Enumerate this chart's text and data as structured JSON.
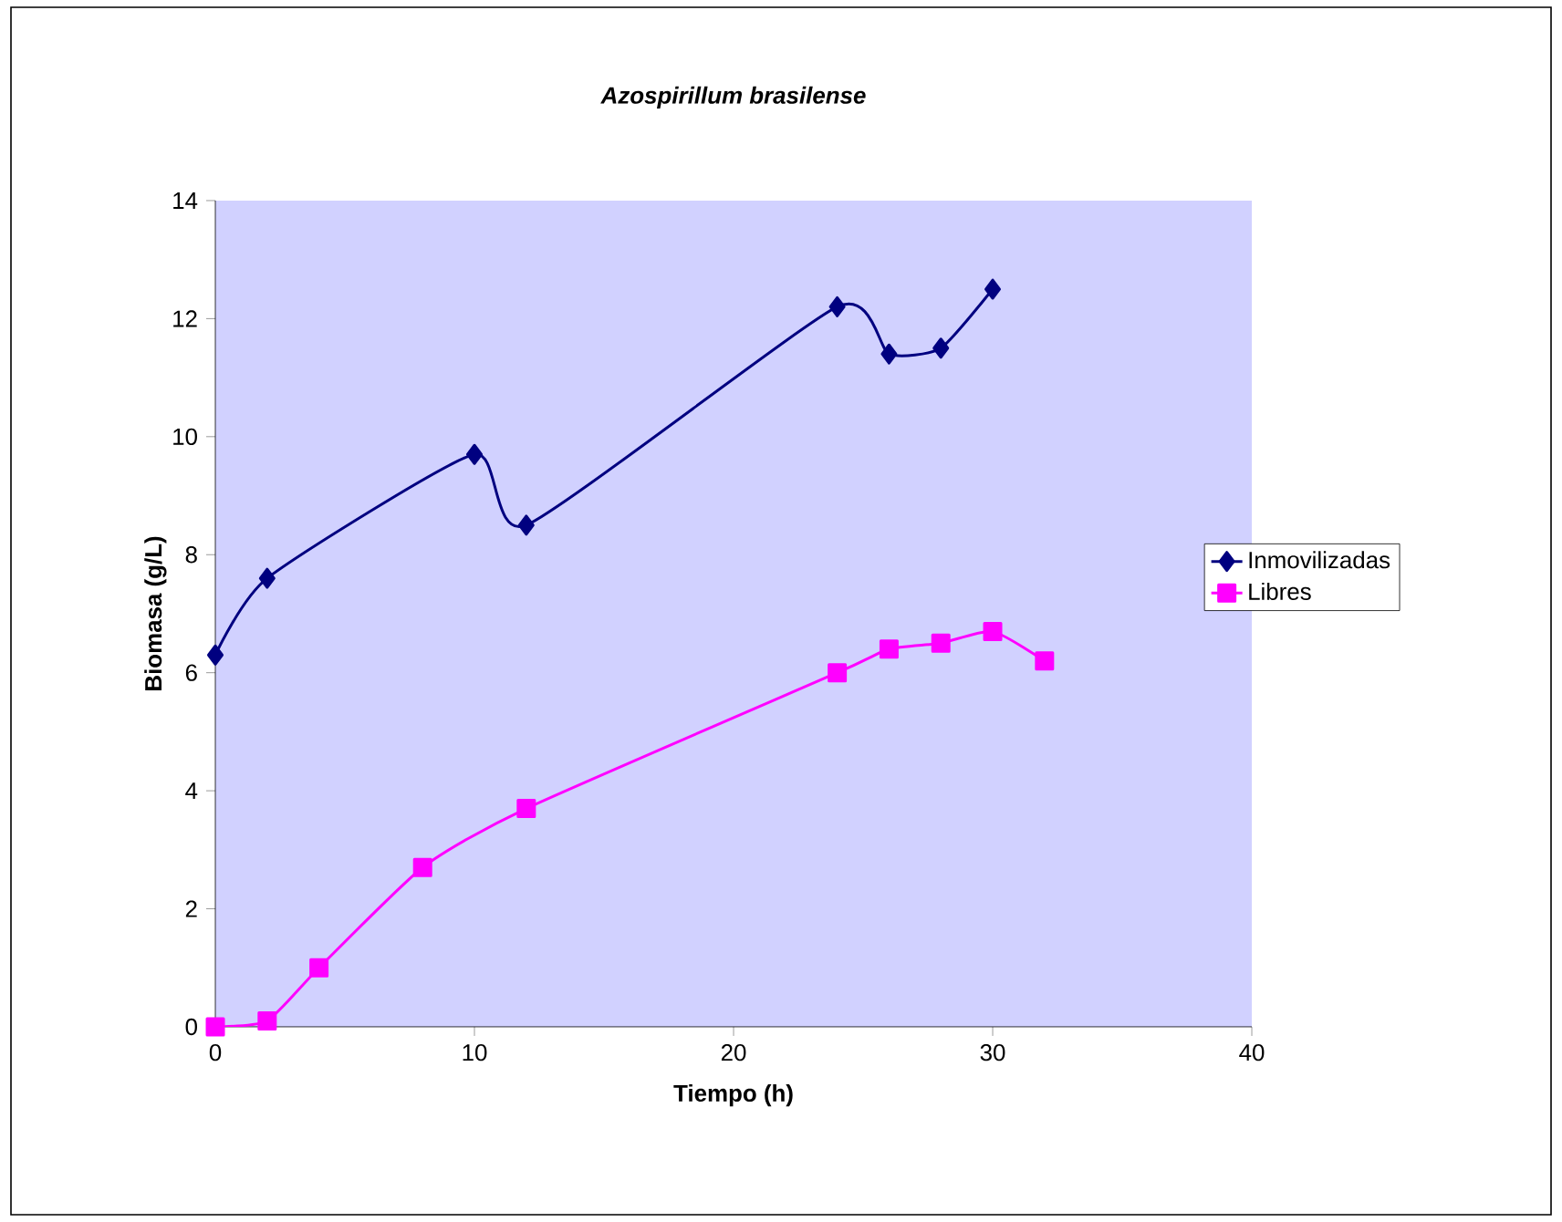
{
  "chart_data": {
    "type": "line",
    "title": "Azospirillum brasilense",
    "xlabel": "Tiempo (h)",
    "ylabel": "Biomasa (g/L)",
    "xlim": [
      0,
      40
    ],
    "xticks": [
      0,
      10,
      20,
      30,
      40
    ],
    "ylim": [
      0,
      14
    ],
    "yticks": [
      0,
      2,
      4,
      6,
      8,
      10,
      12,
      14
    ],
    "legend": "right",
    "grid": false,
    "series": [
      {
        "name": "Inmovilizadas",
        "color": "#000080",
        "marker": "diamond",
        "x": [
          0,
          2,
          10,
          12,
          24,
          26,
          28,
          30
        ],
        "values": [
          6.3,
          7.6,
          9.7,
          8.5,
          12.2,
          11.4,
          11.5,
          12.5
        ]
      },
      {
        "name": "Libres",
        "color": "#ff00ff",
        "marker": "square",
        "x": [
          0,
          2,
          4,
          8,
          12,
          24,
          26,
          28,
          30,
          32
        ],
        "values": [
          0,
          0.1,
          1.0,
          2.7,
          3.7,
          6.0,
          6.4,
          6.5,
          6.7,
          6.2
        ]
      }
    ]
  }
}
